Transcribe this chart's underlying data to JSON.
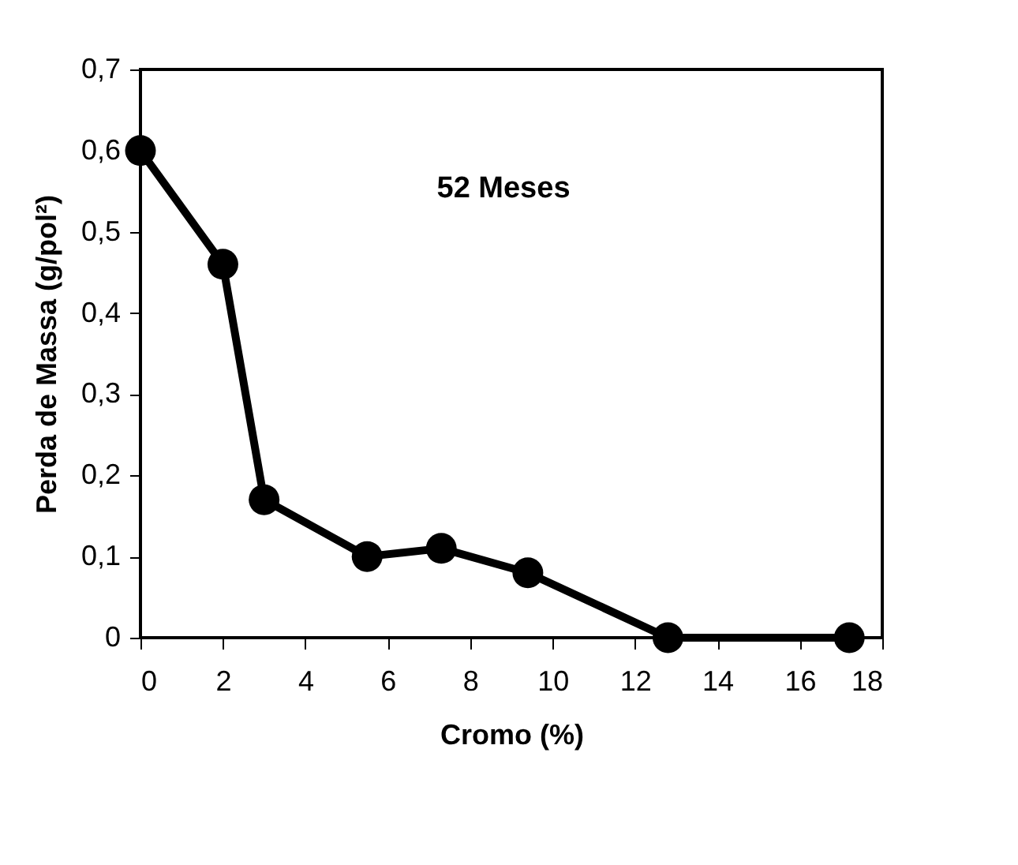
{
  "chart_data": {
    "type": "line",
    "xlabel": "Cromo (%)",
    "ylabel": "Perda de Massa (g/pol²)",
    "annotations": [
      "52 Meses"
    ],
    "x": [
      0,
      2,
      3,
      5.5,
      7.3,
      9.4,
      12.8,
      17.2
    ],
    "series": [
      {
        "color": "#000000",
        "values": [
          0.6,
          0.46,
          0.17,
          0.1,
          0.11,
          0.08,
          0.0,
          0.0
        ]
      }
    ],
    "xlim": [
      0,
      18
    ],
    "xticks": [
      0,
      2,
      4,
      6,
      8,
      10,
      12,
      14,
      16,
      18
    ],
    "ylim": [
      0,
      0.7
    ],
    "yticks": [
      0,
      {
        "value": 0.1,
        "label": "0,1"
      },
      {
        "value": 0.2,
        "label": "0,2"
      },
      {
        "value": 0.3,
        "label": "0,3"
      },
      {
        "value": 0.4,
        "label": "0,4"
      },
      {
        "value": 0.5,
        "label": "0,5"
      },
      {
        "value": 0.6,
        "label": "0,6"
      },
      {
        "value": 0.7,
        "label": "0,7"
      }
    ],
    "grid": false,
    "marker": "circle",
    "line_style": "solid"
  }
}
